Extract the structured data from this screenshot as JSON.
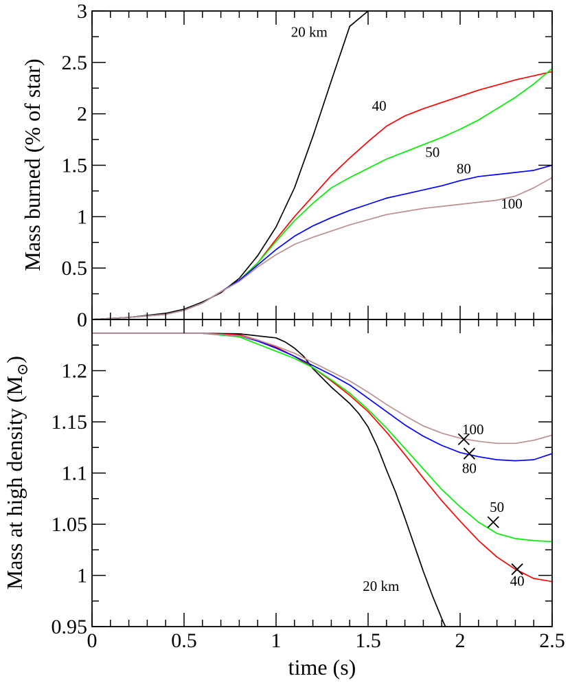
{
  "chart_data": [
    {
      "id": "top",
      "type": "line",
      "ylabel": "Mass burned (% of star)",
      "xlim": [
        0,
        2.5
      ],
      "ylim": [
        0,
        3
      ],
      "x_ticks": [
        0,
        0.5,
        1,
        1.5,
        2,
        2.5
      ],
      "y_ticks": [
        0,
        0.5,
        1,
        1.5,
        2,
        2.5,
        3
      ],
      "y_tick_labels": [
        "0",
        "0.5",
        "1",
        "1.5",
        "2",
        "2.5",
        "3"
      ],
      "series": [
        {
          "name": "20 km",
          "color": "#000000",
          "x": [
            0,
            0.2,
            0.4,
            0.5,
            0.6,
            0.7,
            0.8,
            0.9,
            1.0,
            1.1,
            1.2,
            1.3,
            1.4,
            1.5
          ],
          "y": [
            0,
            0.02,
            0.06,
            0.1,
            0.17,
            0.26,
            0.4,
            0.62,
            0.9,
            1.28,
            1.78,
            2.32,
            2.85,
            3.0
          ]
        },
        {
          "name": "40",
          "color": "#ff0000",
          "x": [
            0,
            0.2,
            0.4,
            0.5,
            0.6,
            0.7,
            0.8,
            0.9,
            1.0,
            1.1,
            1.2,
            1.3,
            1.4,
            1.5,
            1.6,
            1.7,
            1.8,
            1.9,
            2.0,
            2.1,
            2.2,
            2.3,
            2.4,
            2.5
          ],
          "y": [
            0,
            0.02,
            0.05,
            0.09,
            0.16,
            0.27,
            0.38,
            0.55,
            0.78,
            1.0,
            1.2,
            1.4,
            1.57,
            1.73,
            1.88,
            1.98,
            2.05,
            2.11,
            2.17,
            2.23,
            2.28,
            2.33,
            2.37,
            2.41
          ]
        },
        {
          "name": "50",
          "color": "#00ee00",
          "x": [
            0,
            0.2,
            0.4,
            0.5,
            0.6,
            0.7,
            0.8,
            0.9,
            1.0,
            1.1,
            1.2,
            1.3,
            1.4,
            1.5,
            1.6,
            1.7,
            1.8,
            1.9,
            2.0,
            2.1,
            2.2,
            2.3,
            2.4,
            2.5
          ],
          "y": [
            0,
            0.02,
            0.05,
            0.09,
            0.16,
            0.27,
            0.38,
            0.55,
            0.76,
            0.96,
            1.13,
            1.28,
            1.38,
            1.47,
            1.56,
            1.63,
            1.7,
            1.77,
            1.85,
            1.94,
            2.05,
            2.16,
            2.29,
            2.44
          ]
        },
        {
          "name": "80",
          "color": "#0000ff",
          "x": [
            0,
            0.2,
            0.4,
            0.5,
            0.6,
            0.7,
            0.8,
            0.9,
            1.0,
            1.1,
            1.2,
            1.3,
            1.4,
            1.5,
            1.6,
            1.7,
            1.8,
            1.9,
            2.0,
            2.1,
            2.2,
            2.3,
            2.4,
            2.5
          ],
          "y": [
            0,
            0.02,
            0.05,
            0.09,
            0.16,
            0.27,
            0.38,
            0.53,
            0.68,
            0.81,
            0.91,
            0.99,
            1.06,
            1.12,
            1.18,
            1.22,
            1.26,
            1.3,
            1.35,
            1.39,
            1.41,
            1.43,
            1.45,
            1.5
          ]
        },
        {
          "name": "100",
          "color": "#bc8f8f",
          "x": [
            0,
            0.2,
            0.4,
            0.5,
            0.6,
            0.7,
            0.8,
            0.9,
            1.0,
            1.1,
            1.2,
            1.3,
            1.4,
            1.5,
            1.6,
            1.7,
            1.8,
            1.9,
            2.0,
            2.1,
            2.2,
            2.3,
            2.4,
            2.5
          ],
          "y": [
            0,
            0.02,
            0.05,
            0.09,
            0.16,
            0.27,
            0.37,
            0.51,
            0.63,
            0.73,
            0.8,
            0.86,
            0.92,
            0.97,
            1.02,
            1.05,
            1.08,
            1.1,
            1.12,
            1.14,
            1.16,
            1.2,
            1.28,
            1.38
          ]
        }
      ],
      "annotations": [
        {
          "text": "20 km",
          "x": 1.18,
          "y": 2.75
        },
        {
          "text": "40",
          "x": 1.56,
          "y": 2.03
        },
        {
          "text": "50",
          "x": 1.85,
          "y": 1.58
        },
        {
          "text": "80",
          "x": 2.02,
          "y": 1.42
        },
        {
          "text": "100",
          "x": 2.28,
          "y": 1.08
        }
      ]
    },
    {
      "id": "bottom",
      "type": "line",
      "xlabel": "time (s)",
      "ylabel": "Mass at high density (M",
      "ylabel_subscript": "⊙",
      "ylabel_close": ")",
      "xlim": [
        0,
        2.5
      ],
      "ylim": [
        0.95,
        1.25
      ],
      "x_ticks": [
        0,
        0.5,
        1,
        1.5,
        2,
        2.5
      ],
      "x_tick_labels": [
        "0",
        "0.5",
        "1",
        "1.5",
        "2",
        "2.5"
      ],
      "y_ticks": [
        0.95,
        1.0,
        1.05,
        1.1,
        1.15,
        1.2
      ],
      "y_tick_labels": [
        "0.95",
        "1",
        "1.05",
        "1.1",
        "1.15",
        "1.2"
      ],
      "series": [
        {
          "name": "20 km",
          "color": "#000000",
          "x": [
            0,
            0.3,
            0.6,
            0.8,
            0.9,
            1.0,
            1.05,
            1.1,
            1.15,
            1.2,
            1.25,
            1.3,
            1.35,
            1.4,
            1.45,
            1.5,
            1.55,
            1.6,
            1.65,
            1.7,
            1.75,
            1.8,
            1.85,
            1.9,
            1.92
          ],
          "y": [
            1.2365,
            1.2365,
            1.2365,
            1.236,
            1.234,
            1.232,
            1.228,
            1.222,
            1.214,
            1.202,
            1.193,
            1.184,
            1.176,
            1.168,
            1.158,
            1.145,
            1.126,
            1.103,
            1.081,
            1.056,
            1.03,
            1.004,
            0.98,
            0.958,
            0.95
          ]
        },
        {
          "name": "40",
          "color": "#ff0000",
          "x": [
            0,
            0.3,
            0.6,
            0.8,
            0.9,
            1.0,
            1.1,
            1.2,
            1.3,
            1.4,
            1.5,
            1.6,
            1.7,
            1.8,
            1.9,
            2.0,
            2.1,
            2.2,
            2.3,
            2.4,
            2.5
          ],
          "y": [
            1.2365,
            1.2365,
            1.2365,
            1.235,
            1.23,
            1.223,
            1.214,
            1.203,
            1.19,
            1.176,
            1.16,
            1.14,
            1.118,
            1.095,
            1.073,
            1.053,
            1.034,
            1.018,
            1.006,
            0.997,
            0.994
          ]
        },
        {
          "name": "50",
          "color": "#00ee00",
          "x": [
            0,
            0.3,
            0.6,
            0.8,
            0.9,
            1.0,
            1.1,
            1.2,
            1.3,
            1.4,
            1.5,
            1.6,
            1.7,
            1.8,
            1.9,
            2.0,
            2.1,
            2.2,
            2.3,
            2.4,
            2.5
          ],
          "y": [
            1.2365,
            1.2365,
            1.2365,
            1.233,
            1.226,
            1.219,
            1.212,
            1.203,
            1.191,
            1.178,
            1.162,
            1.144,
            1.124,
            1.104,
            1.084,
            1.067,
            1.052,
            1.041,
            1.036,
            1.034,
            1.033
          ]
        },
        {
          "name": "80",
          "color": "#0000ff",
          "x": [
            0,
            0.3,
            0.6,
            0.8,
            0.9,
            1.0,
            1.1,
            1.2,
            1.3,
            1.4,
            1.5,
            1.6,
            1.7,
            1.8,
            1.9,
            2.0,
            2.1,
            2.2,
            2.3,
            2.4,
            2.5
          ],
          "y": [
            1.2365,
            1.2365,
            1.2365,
            1.234,
            1.229,
            1.222,
            1.214,
            1.205,
            1.196,
            1.186,
            1.173,
            1.16,
            1.147,
            1.136,
            1.127,
            1.12,
            1.116,
            1.113,
            1.112,
            1.113,
            1.119
          ]
        },
        {
          "name": "100",
          "color": "#bc8f8f",
          "x": [
            0,
            0.3,
            0.6,
            0.8,
            0.9,
            1.0,
            1.1,
            1.2,
            1.3,
            1.4,
            1.5,
            1.6,
            1.7,
            1.8,
            1.9,
            2.0,
            2.1,
            2.2,
            2.3,
            2.4,
            2.5
          ],
          "y": [
            1.2365,
            1.2365,
            1.2365,
            1.234,
            1.23,
            1.224,
            1.217,
            1.208,
            1.199,
            1.19,
            1.179,
            1.167,
            1.156,
            1.146,
            1.139,
            1.134,
            1.131,
            1.129,
            1.129,
            1.132,
            1.137
          ]
        }
      ],
      "markers": [
        {
          "series": "100",
          "x": 2.02,
          "y": 1.133
        },
        {
          "series": "80",
          "x": 2.05,
          "y": 1.119
        },
        {
          "series": "50",
          "x": 2.18,
          "y": 1.052
        },
        {
          "series": "40",
          "x": 2.31,
          "y": 1.006
        }
      ],
      "annotations": [
        {
          "text": "100",
          "x": 2.07,
          "y": 1.138
        },
        {
          "text": "80",
          "x": 2.05,
          "y": 1.1
        },
        {
          "text": "50",
          "x": 2.2,
          "y": 1.062
        },
        {
          "text": "40",
          "x": 2.31,
          "y": 0.99
        },
        {
          "text": "20 km",
          "x": 1.57,
          "y": 0.985
        }
      ]
    }
  ]
}
